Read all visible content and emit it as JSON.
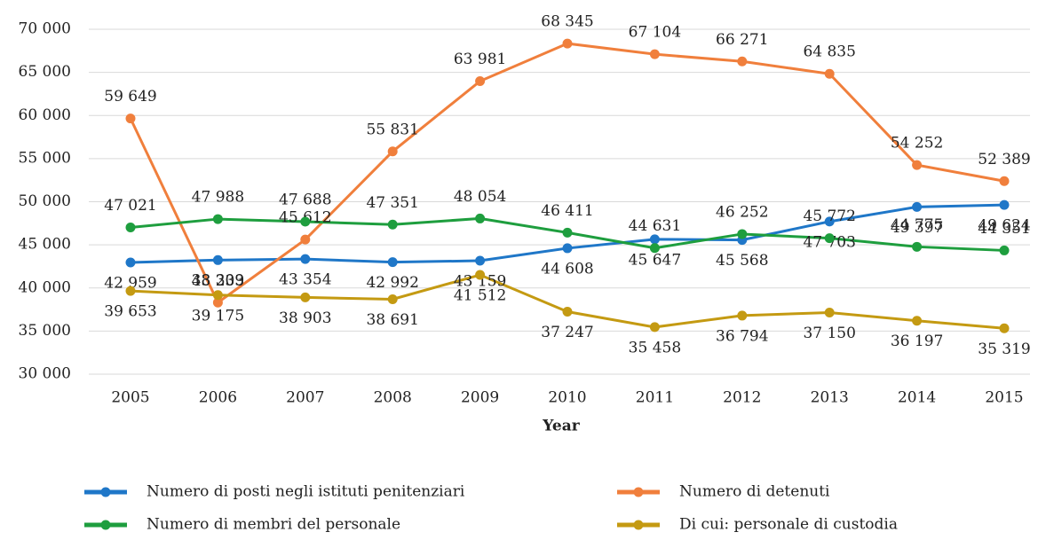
{
  "chart_data": {
    "type": "line",
    "x_label": "Year",
    "categories": [
      "2005",
      "2006",
      "2007",
      "2008",
      "2009",
      "2010",
      "2011",
      "2012",
      "2013",
      "2014",
      "2015"
    ],
    "ylim": [
      30000,
      70000
    ],
    "yticks": [
      {
        "value": 30000,
        "label": "30 000"
      },
      {
        "value": 35000,
        "label": "35 000"
      },
      {
        "value": 40000,
        "label": "40 000"
      },
      {
        "value": 45000,
        "label": "45 000"
      },
      {
        "value": 50000,
        "label": "50 000"
      },
      {
        "value": 55000,
        "label": "55 000"
      },
      {
        "value": 60000,
        "label": "60 000"
      },
      {
        "value": 65000,
        "label": "65 000"
      },
      {
        "value": 70000,
        "label": "70 000"
      }
    ],
    "grid": true,
    "series": [
      {
        "name": "Numero di posti negli istituti penitenziari",
        "color": "#1f77c8",
        "values": [
          42959,
          43233,
          43354,
          42992,
          43159,
          44608,
          45647,
          45568,
          47703,
          49397,
          49624
        ],
        "value_labels": [
          "42 959",
          "43 233",
          "43 354",
          "42 992",
          "43 159",
          "44 608",
          "45 647",
          "45 568",
          "47 703",
          "49 397",
          "49 624"
        ]
      },
      {
        "name": "Numero di detenuti",
        "color": "#f07f3c",
        "values": [
          59649,
          38309,
          45612,
          55831,
          63981,
          68345,
          67104,
          66271,
          64835,
          54252,
          52389
        ],
        "value_labels": [
          "59 649",
          "38 309",
          "45 612",
          "55 831",
          "63 981",
          "68 345",
          "67 104",
          "66 271",
          "64 835",
          "54 252",
          "52 389"
        ]
      },
      {
        "name": "Numero di membri del personale",
        "color": "#1e9e3e",
        "values": [
          47021,
          47988,
          47688,
          47351,
          48054,
          46411,
          44631,
          46252,
          45772,
          44775,
          44351
        ],
        "value_labels": [
          "47 021",
          "47 988",
          "47 688",
          "47 351",
          "48 054",
          "46 411",
          "44 631",
          "46 252",
          "45 772",
          "44 775",
          "44 351"
        ]
      },
      {
        "name": "Di cui: personale di custodia",
        "color": "#c49a12",
        "values": [
          39653,
          39175,
          38903,
          38691,
          41512,
          37247,
          35458,
          36794,
          37150,
          36197,
          35319
        ],
        "value_labels": [
          "39 653",
          "39 175",
          "38 903",
          "38 691",
          "41 512",
          "37 247",
          "35 458",
          "36 794",
          "37 150",
          "36 197",
          "35 319"
        ]
      }
    ]
  }
}
